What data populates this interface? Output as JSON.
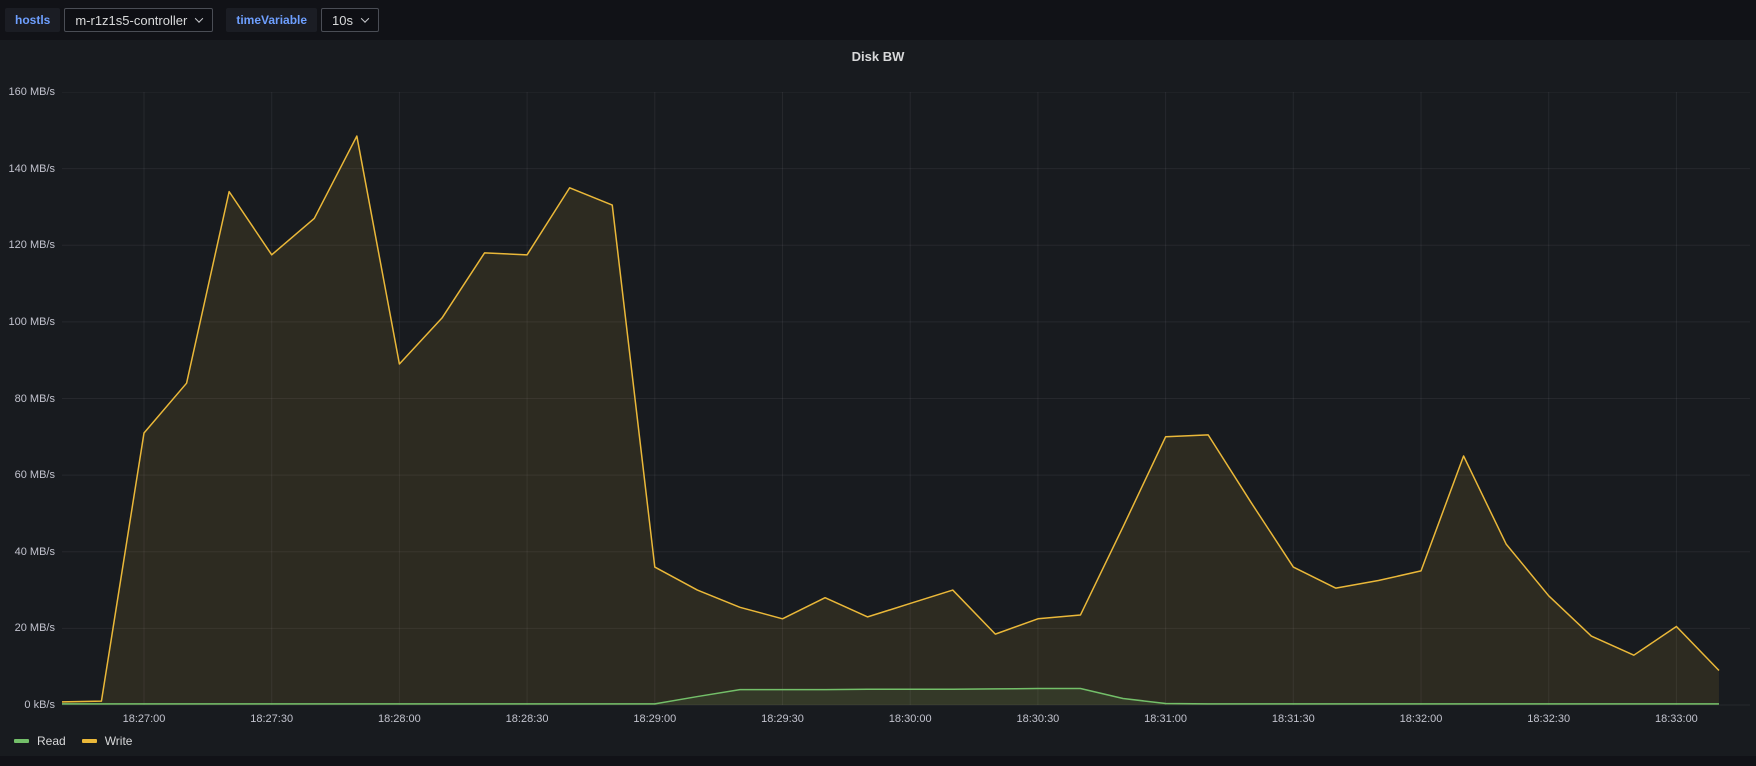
{
  "toolbar": {
    "variables": [
      {
        "label": "hostls",
        "value": "m-r1z1s5-controller"
      },
      {
        "label": "timeVariable",
        "value": "10s"
      }
    ]
  },
  "panel": {
    "title": "Disk BW"
  },
  "legend": [
    {
      "name": "Read",
      "color": "#73BF69"
    },
    {
      "name": "Write",
      "color": "#EAB839"
    }
  ],
  "colors": {
    "page_bg": "#111217",
    "panel_bg": "#181b1f",
    "grid": "rgba(204,204,220,0.08)",
    "tick_text": "#c2c3ce",
    "title_text": "#d8d9da",
    "variable_label_blue": "#6e9fff",
    "read_line": "#73BF69",
    "write_line": "#EAB839",
    "read_fill": "rgba(115,191,105,0.10)",
    "write_fill": "rgba(234,184,57,0.10)"
  },
  "chart_data": {
    "type": "area",
    "title": "Disk BW",
    "unit": "MB/s",
    "ylim": [
      0,
      160
    ],
    "grid": true,
    "legend_position": "bottom-left",
    "y_ticks": [
      "0 kB/s",
      "20 MB/s",
      "40 MB/s",
      "60 MB/s",
      "80 MB/s",
      "100 MB/s",
      "120 MB/s",
      "140 MB/s",
      "160 MB/s"
    ],
    "x_ticks": [
      "18:27:00",
      "18:27:30",
      "18:28:00",
      "18:28:30",
      "18:29:00",
      "18:29:30",
      "18:30:00",
      "18:30:30",
      "18:31:00",
      "18:31:30",
      "18:32:00",
      "18:32:30",
      "18:33:00"
    ],
    "x": [
      "18:26:40",
      "18:26:50",
      "18:27:00",
      "18:27:10",
      "18:27:20",
      "18:27:30",
      "18:27:40",
      "18:27:50",
      "18:28:00",
      "18:28:10",
      "18:28:20",
      "18:28:30",
      "18:28:40",
      "18:28:50",
      "18:29:00",
      "18:29:10",
      "18:29:20",
      "18:29:30",
      "18:29:40",
      "18:29:50",
      "18:30:00",
      "18:30:10",
      "18:30:20",
      "18:30:30",
      "18:30:40",
      "18:30:50",
      "18:31:00",
      "18:31:10",
      "18:31:20",
      "18:31:30",
      "18:31:40",
      "18:31:50",
      "18:32:00",
      "18:32:10",
      "18:32:20",
      "18:32:30",
      "18:32:40",
      "18:32:50",
      "18:33:00",
      "18:33:10"
    ],
    "series": [
      {
        "name": "Write",
        "color": "#EAB839",
        "values": [
          0.8,
          1,
          71,
          84,
          134,
          117.5,
          127,
          148.5,
          89,
          101,
          118,
          117.5,
          135,
          130.5,
          36,
          30,
          25.5,
          22.5,
          28,
          23,
          26.5,
          30,
          18.5,
          22.5,
          23.5,
          46.5,
          70,
          70.5,
          53,
          36,
          30.5,
          32.5,
          35,
          65,
          42,
          28.5,
          18,
          13,
          20.5,
          9
        ]
      },
      {
        "name": "Read",
        "color": "#73BF69",
        "values": [
          0.3,
          0.3,
          0.3,
          0.3,
          0.3,
          0.3,
          0.3,
          0.3,
          0.3,
          0.3,
          0.3,
          0.3,
          0.3,
          0.3,
          0.3,
          2.2,
          4,
          4,
          4,
          4.1,
          4.1,
          4.1,
          4.2,
          4.3,
          4.3,
          1.7,
          0.4,
          0.3,
          0.3,
          0.3,
          0.3,
          0.3,
          0.3,
          0.3,
          0.3,
          0.3,
          0.3,
          0.3,
          0.3,
          0.3
        ]
      }
    ]
  }
}
